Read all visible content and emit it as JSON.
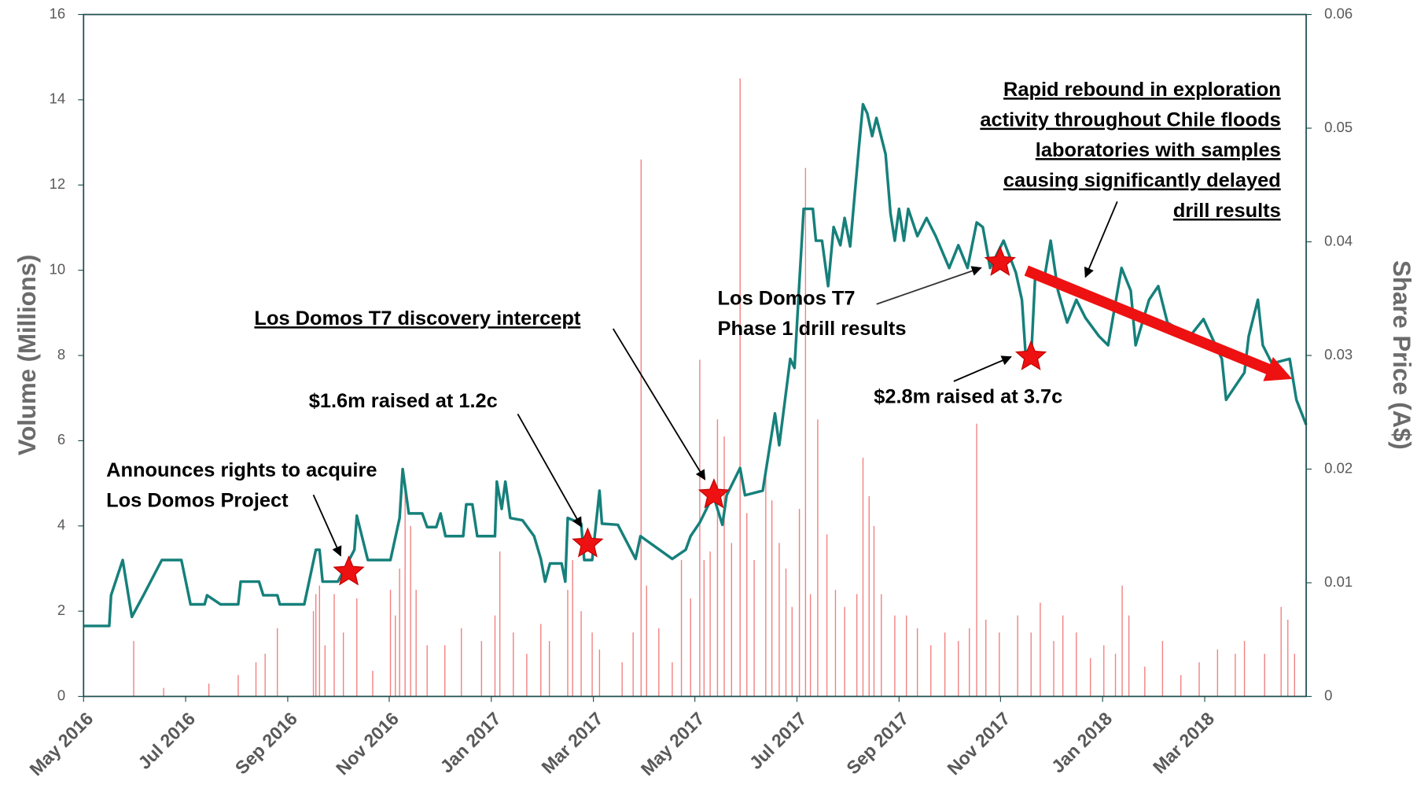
{
  "chart_data": {
    "type": "combo",
    "ylabel": "Volume (Millions)",
    "y2label": "Share Price (A$)",
    "xlim": [
      2016.333,
      2018.333
    ],
    "xticks": [
      {
        "value": 2016.333,
        "label": "May 2016"
      },
      {
        "value": 2016.5,
        "label": "Jul 2016"
      },
      {
        "value": 2016.667,
        "label": "Sep 2016"
      },
      {
        "value": 2016.833,
        "label": "Nov 2016"
      },
      {
        "value": 2017,
        "label": "Jan 2017"
      },
      {
        "value": 2017.167,
        "label": "Mar 2017"
      },
      {
        "value": 2017.333,
        "label": "May 2017"
      },
      {
        "value": 2017.5,
        "label": "Jul 2017"
      },
      {
        "value": 2017.667,
        "label": "Sep 2017"
      },
      {
        "value": 2017.833,
        "label": "Nov 2017"
      },
      {
        "value": 2018,
        "label": "Jan 2018"
      },
      {
        "value": 2018.167,
        "label": "Mar 2018"
      }
    ],
    "ylim": [
      0,
      16
    ],
    "yticks": [
      0,
      2,
      4,
      6,
      8,
      10,
      12,
      14,
      16
    ],
    "y2lim": [
      0,
      0.06
    ],
    "y2ticks": [
      0,
      0.01,
      0.02,
      0.03,
      0.04,
      0.05,
      0.06
    ],
    "series": [
      {
        "type": "bar",
        "color": "#f28080",
        "x": [
          2016.415,
          2016.464,
          2016.538,
          2016.586,
          2016.615,
          2016.63,
          2016.65,
          2016.709,
          2016.713,
          2016.719,
          2016.728,
          2016.743,
          2016.758,
          2016.78,
          2016.806,
          2016.835,
          2016.843,
          2016.85,
          2016.859,
          2016.868,
          2016.877,
          2016.895,
          2016.924,
          2016.951,
          2016.984,
          2017.006,
          2017.014,
          2017.036,
          2017.058,
          2017.081,
          2017.095,
          2017.125,
          2017.133,
          2017.147,
          2017.165,
          2017.177,
          2017.214,
          2017.232,
          2017.245,
          2017.254,
          2017.274,
          2017.296,
          2017.311,
          2017.326,
          2017.341,
          2017.348,
          2017.358,
          2017.37,
          2017.381,
          2017.393,
          2017.407,
          2017.418,
          2017.43,
          2017.449,
          2017.459,
          2017.471,
          2017.482,
          2017.492,
          2017.504,
          2017.514,
          2017.522,
          2017.534,
          2017.549,
          2017.563,
          2017.578,
          2017.598,
          2017.608,
          2017.618,
          2017.626,
          2017.638,
          2017.66,
          2017.679,
          2017.697,
          2017.719,
          2017.742,
          2017.764,
          2017.782,
          2017.794,
          2017.809,
          2017.831,
          2017.861,
          2017.883,
          2017.898,
          2017.92,
          2017.935,
          2017.957,
          2017.98,
          2018.002,
          2018.021,
          2018.032,
          2018.043,
          2018.069,
          2018.098,
          2018.128,
          2018.158,
          2018.188,
          2018.217,
          2018.232,
          2018.265,
          2018.292,
          2018.303,
          2018.314
        ],
        "values": [
          1.3,
          0.2,
          0.3,
          0.5,
          0.8,
          1.0,
          1.6,
          2.0,
          2.4,
          2.6,
          1.2,
          2.4,
          1.5,
          2.3,
          0.6,
          2.5,
          1.9,
          3.0,
          5.0,
          4.0,
          2.5,
          1.2,
          1.2,
          1.6,
          1.3,
          1.9,
          3.4,
          1.5,
          1.0,
          1.7,
          1.3,
          2.5,
          3.2,
          2.0,
          1.5,
          1.1,
          0.8,
          1.5,
          12.6,
          2.6,
          1.6,
          0.8,
          3.2,
          2.3,
          7.9,
          3.2,
          3.4,
          6.5,
          6.1,
          3.6,
          14.5,
          4.3,
          3.2,
          5.4,
          4.6,
          3.6,
          3.0,
          2.1,
          4.4,
          12.4,
          2.4,
          6.5,
          3.8,
          2.5,
          2.1,
          2.4,
          5.6,
          4.7,
          4.0,
          2.4,
          1.9,
          1.9,
          1.6,
          1.2,
          1.5,
          1.3,
          1.6,
          6.4,
          1.8,
          1.5,
          1.9,
          1.5,
          2.2,
          1.3,
          1.9,
          1.5,
          0.9,
          1.2,
          1.0,
          2.6,
          1.9,
          0.7,
          1.3,
          0.5,
          0.8,
          1.1,
          1.0,
          1.3,
          1.0,
          2.1,
          1.8,
          1.0
        ]
      },
      {
        "type": "line",
        "axis": "y2",
        "color": "#16807b",
        "x": [
          2016.333,
          2016.375,
          2016.378,
          2016.397,
          2016.412,
          2016.431,
          2016.461,
          2016.493,
          2016.508,
          2016.531,
          2016.535,
          2016.557,
          2016.586,
          2016.59,
          2016.62,
          2016.627,
          2016.65,
          2016.654,
          2016.694,
          2016.713,
          2016.719,
          2016.724,
          2016.749,
          2016.776,
          2016.78,
          2016.798,
          2016.835,
          2016.85,
          2016.855,
          2016.865,
          2016.887,
          2016.895,
          2016.91,
          2016.917,
          2016.925,
          2016.954,
          2016.959,
          2016.969,
          2016.977,
          2017.006,
          2017.009,
          2017.017,
          2017.023,
          2017.031,
          2017.051,
          2017.07,
          2017.081,
          2017.088,
          2017.096,
          2017.115,
          2017.121,
          2017.125,
          2017.147,
          2017.152,
          2017.165,
          2017.177,
          2017.181,
          2017.207,
          2017.236,
          2017.244,
          2017.296,
          2017.318,
          2017.326,
          2017.341,
          2017.363,
          2017.378,
          2017.385,
          2017.407,
          2017.415,
          2017.444,
          2017.464,
          2017.471,
          2017.489,
          2017.496,
          2017.504,
          2017.511,
          2017.526,
          2017.531,
          2017.541,
          2017.551,
          2017.56,
          2017.571,
          2017.578,
          2017.587,
          2017.595,
          2017.601,
          2017.608,
          2017.615,
          2017.623,
          2017.63,
          2017.645,
          2017.653,
          2017.66,
          2017.667,
          2017.675,
          2017.682,
          2017.697,
          2017.712,
          2017.727,
          2017.749,
          2017.764,
          2017.779,
          2017.794,
          2017.804,
          2017.816,
          2017.838,
          2017.858,
          2017.868,
          2017.875,
          2017.883,
          2017.89,
          2017.905,
          2017.915,
          2017.927,
          2017.942,
          2017.957,
          2017.972,
          2017.994,
          2018.009,
          2018.031,
          2018.046,
          2018.054,
          2018.076,
          2018.091,
          2018.106,
          2018.143,
          2018.165,
          2018.195,
          2018.202,
          2018.232,
          2018.239,
          2018.254,
          2018.262,
          2018.277,
          2018.306,
          2018.317,
          2018.333
        ],
        "values": [
          0.0062,
          0.0062,
          0.0089,
          0.012,
          0.007,
          0.0089,
          0.012,
          0.012,
          0.0081,
          0.0081,
          0.0089,
          0.0081,
          0.0081,
          0.0101,
          0.0101,
          0.0089,
          0.0089,
          0.0081,
          0.0081,
          0.0129,
          0.0129,
          0.0101,
          0.0101,
          0.0129,
          0.0159,
          0.012,
          0.012,
          0.0157,
          0.02,
          0.0161,
          0.0161,
          0.0149,
          0.0149,
          0.0161,
          0.0141,
          0.0141,
          0.0169,
          0.0169,
          0.0141,
          0.0141,
          0.0189,
          0.0165,
          0.0189,
          0.0157,
          0.0155,
          0.0141,
          0.0121,
          0.0101,
          0.0117,
          0.0117,
          0.0101,
          0.0157,
          0.0152,
          0.012,
          0.012,
          0.0181,
          0.0152,
          0.0151,
          0.0121,
          0.0141,
          0.0121,
          0.0129,
          0.0141,
          0.0153,
          0.0177,
          0.0151,
          0.0177,
          0.0201,
          0.0177,
          0.0181,
          0.0249,
          0.0221,
          0.0297,
          0.0289,
          0.0365,
          0.0429,
          0.0429,
          0.0401,
          0.0401,
          0.0361,
          0.0413,
          0.0397,
          0.0421,
          0.0396,
          0.0445,
          0.0481,
          0.0521,
          0.0513,
          0.0493,
          0.0509,
          0.0477,
          0.0425,
          0.0401,
          0.0429,
          0.0401,
          0.0429,
          0.0405,
          0.0421,
          0.0405,
          0.0377,
          0.0397,
          0.0377,
          0.0417,
          0.0413,
          0.0377,
          0.0401,
          0.0373,
          0.0349,
          0.0293,
          0.0297,
          0.0373,
          0.0369,
          0.0401,
          0.0357,
          0.0329,
          0.0349,
          0.0333,
          0.0317,
          0.0309,
          0.0377,
          0.0357,
          0.0309,
          0.0349,
          0.0361,
          0.0329,
          0.0317,
          0.0332,
          0.0297,
          0.0261,
          0.0285,
          0.0317,
          0.0349,
          0.0309,
          0.0293,
          0.0297,
          0.0261,
          0.0239
        ]
      }
    ],
    "annotations": [
      {
        "lines": [
          "Announces rights to acquire",
          "Los Domos Project"
        ]
      },
      {
        "lines": [
          "$1.6m raised at 1.2c"
        ]
      },
      {
        "lines": [
          "Los Domos T7 discovery intercept"
        ],
        "underline": true
      },
      {
        "lines": [
          "Los Domos T7",
          "Phase 1 drill results"
        ]
      },
      {
        "lines": [
          "$2.8m raised at 3.7c"
        ]
      },
      {
        "lines": [
          "Rapid rebound in exploration",
          "activity throughout Chile floods",
          "laboratories with samples",
          "causing significantly delayed",
          "drill results"
        ],
        "underline": true
      }
    ]
  }
}
